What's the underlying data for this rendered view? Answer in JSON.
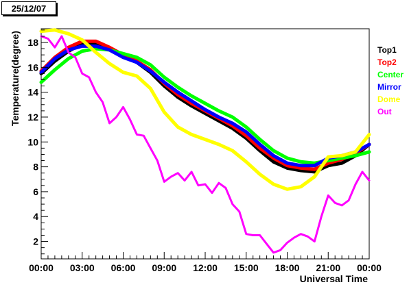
{
  "date_label": "25/12/07",
  "chart_data": {
    "type": "line",
    "title": "",
    "xlabel": "Universal Time",
    "ylabel": "Temperature(degree)",
    "xlim": [
      0,
      24
    ],
    "ylim": [
      0.6,
      19.1
    ],
    "x_ticks": [
      {
        "v": 0,
        "label": "00:00"
      },
      {
        "v": 3,
        "label": "03:00"
      },
      {
        "v": 6,
        "label": "06:00"
      },
      {
        "v": 9,
        "label": "09:00"
      },
      {
        "v": 12,
        "label": "12:00"
      },
      {
        "v": 15,
        "label": "15:00"
      },
      {
        "v": 18,
        "label": "18:00"
      },
      {
        "v": 21,
        "label": "21:00"
      },
      {
        "v": 24,
        "label": "00:00"
      }
    ],
    "y_ticks": [
      {
        "v": 2,
        "label": "2"
      },
      {
        "v": 4,
        "label": "4"
      },
      {
        "v": 6,
        "label": "6"
      },
      {
        "v": 8,
        "label": "8"
      },
      {
        "v": 10,
        "label": "10"
      },
      {
        "v": 12,
        "label": "12"
      },
      {
        "v": 14,
        "label": "14"
      },
      {
        "v": 16,
        "label": "16"
      },
      {
        "v": 18,
        "label": "18"
      }
    ],
    "grid": false,
    "legend_placement": "right",
    "series": [
      {
        "name": "Top1",
        "color": "#000000",
        "x": [
          0,
          1,
          2,
          3,
          4,
          5,
          6,
          7,
          8,
          9,
          10,
          11,
          12,
          13,
          14,
          15,
          16,
          17,
          18,
          19,
          20,
          21,
          22,
          23,
          24
        ],
        "y": [
          15.5,
          16.5,
          17.3,
          17.9,
          17.9,
          17.4,
          16.9,
          16.4,
          15.6,
          14.5,
          13.6,
          12.9,
          12.3,
          11.7,
          11.1,
          10.3,
          9.3,
          8.4,
          7.9,
          7.7,
          7.6,
          8.1,
          8.3,
          8.9,
          9.8
        ]
      },
      {
        "name": "Top2",
        "color": "#ff0000",
        "x": [
          0,
          1,
          2,
          3,
          4,
          5,
          6,
          7,
          8,
          9,
          10,
          11,
          12,
          13,
          14,
          15,
          16,
          17,
          18,
          19,
          20,
          21,
          22,
          23,
          24
        ],
        "y": [
          15.7,
          16.8,
          17.6,
          18.1,
          18.1,
          17.6,
          17.0,
          16.5,
          15.8,
          14.7,
          13.8,
          13.1,
          12.5,
          11.9,
          11.3,
          10.5,
          9.5,
          8.7,
          8.1,
          7.9,
          7.8,
          8.3,
          8.6,
          9.1,
          9.8
        ]
      },
      {
        "name": "Center",
        "color": "#00ff00",
        "x": [
          0,
          1,
          2,
          3,
          4,
          5,
          6,
          7,
          8,
          9,
          10,
          11,
          12,
          13,
          14,
          15,
          16,
          17,
          18,
          19,
          20,
          21,
          22,
          23,
          24
        ],
        "y": [
          14.8,
          15.8,
          16.7,
          17.3,
          17.5,
          17.4,
          17.1,
          16.8,
          16.2,
          15.2,
          14.4,
          13.7,
          13.1,
          12.5,
          12.0,
          11.2,
          10.2,
          9.3,
          8.7,
          8.4,
          8.3,
          8.5,
          8.7,
          8.9,
          9.2
        ]
      },
      {
        "name": "Mirror",
        "color": "#0000ff",
        "x": [
          0,
          1,
          2,
          3,
          4,
          5,
          6,
          7,
          8,
          9,
          10,
          11,
          12,
          13,
          14,
          15,
          16,
          17,
          18,
          19,
          20,
          21,
          22,
          23,
          24
        ],
        "y": [
          15.6,
          16.7,
          17.4,
          17.7,
          17.7,
          17.4,
          16.8,
          16.4,
          15.7,
          14.8,
          14.0,
          13.3,
          12.6,
          12.0,
          11.5,
          10.8,
          9.8,
          8.9,
          8.3,
          8.1,
          8.1,
          8.7,
          8.9,
          9.2,
          9.8
        ]
      },
      {
        "name": "Dome",
        "color": "#ffff00",
        "x": [
          0,
          1,
          2,
          3,
          4,
          5,
          6,
          7,
          8,
          9,
          10,
          11,
          12,
          13,
          14,
          15,
          16,
          17,
          18,
          19,
          20,
          21,
          22,
          23,
          24
        ],
        "y": [
          18.9,
          19.0,
          18.7,
          18.2,
          17.2,
          16.3,
          15.6,
          15.3,
          14.3,
          12.4,
          11.2,
          10.6,
          10.2,
          9.8,
          9.3,
          8.4,
          7.4,
          6.6,
          6.2,
          6.4,
          7.2,
          8.8,
          8.9,
          9.2,
          10.6
        ]
      },
      {
        "name": "Out",
        "color": "#ff00ff",
        "x": [
          0,
          0.5,
          1,
          1.5,
          2,
          2.5,
          3,
          3.5,
          4,
          4.5,
          5,
          5.5,
          6,
          6.5,
          7,
          7.5,
          8,
          8.5,
          9,
          9.5,
          10,
          10.5,
          11,
          11.5,
          12,
          12.5,
          13,
          13.5,
          14,
          14.5,
          15,
          15.5,
          16,
          16.5,
          17,
          17.5,
          18,
          18.5,
          19,
          19.5,
          20,
          20.5,
          21,
          21.5,
          22,
          22.5,
          23,
          23.5,
          24
        ],
        "y": [
          18.5,
          18.3,
          17.6,
          18.5,
          17.2,
          16.8,
          15.5,
          15.2,
          14.0,
          13.2,
          11.5,
          12.0,
          12.8,
          11.8,
          10.6,
          10.5,
          9.5,
          8.5,
          6.8,
          7.2,
          7.5,
          6.9,
          7.6,
          6.5,
          6.6,
          5.9,
          6.7,
          6.3,
          5.0,
          4.4,
          2.6,
          2.5,
          2.5,
          1.8,
          1.1,
          1.3,
          1.9,
          2.3,
          2.6,
          2.4,
          2.0,
          4.0,
          5.7,
          5.1,
          4.9,
          5.3,
          6.6,
          7.6,
          6.9
        ]
      }
    ]
  }
}
